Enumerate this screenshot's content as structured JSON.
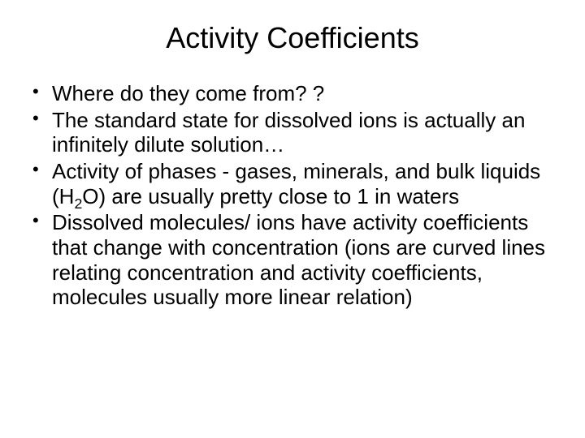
{
  "background_color": "#ffffff",
  "text_color": "#000000",
  "font_family": "Arial",
  "title": {
    "text": "Activity Coefficients",
    "fontsize": 36,
    "align": "center"
  },
  "bullets": {
    "fontsize": 26,
    "items": [
      "Where do they come from? ?",
      "The standard state for dissolved ions is actually an infinitely dilute solution…",
      "Activity of phases - gases, minerals, and bulk liquids (H 2O) are usually pretty close to 1 in waters",
      "Dissolved molecules/ ions have activity coefficients that change with concentration (ions are curved lines relating concentration and activity coefficients, molecules usually more linear relation)"
    ]
  },
  "bullet3_parts": {
    "before": "Activity of phases - gases, minerals, and bulk liquids (H",
    "sub": "2",
    "after": "O) are usually pretty close to 1 in waters"
  }
}
